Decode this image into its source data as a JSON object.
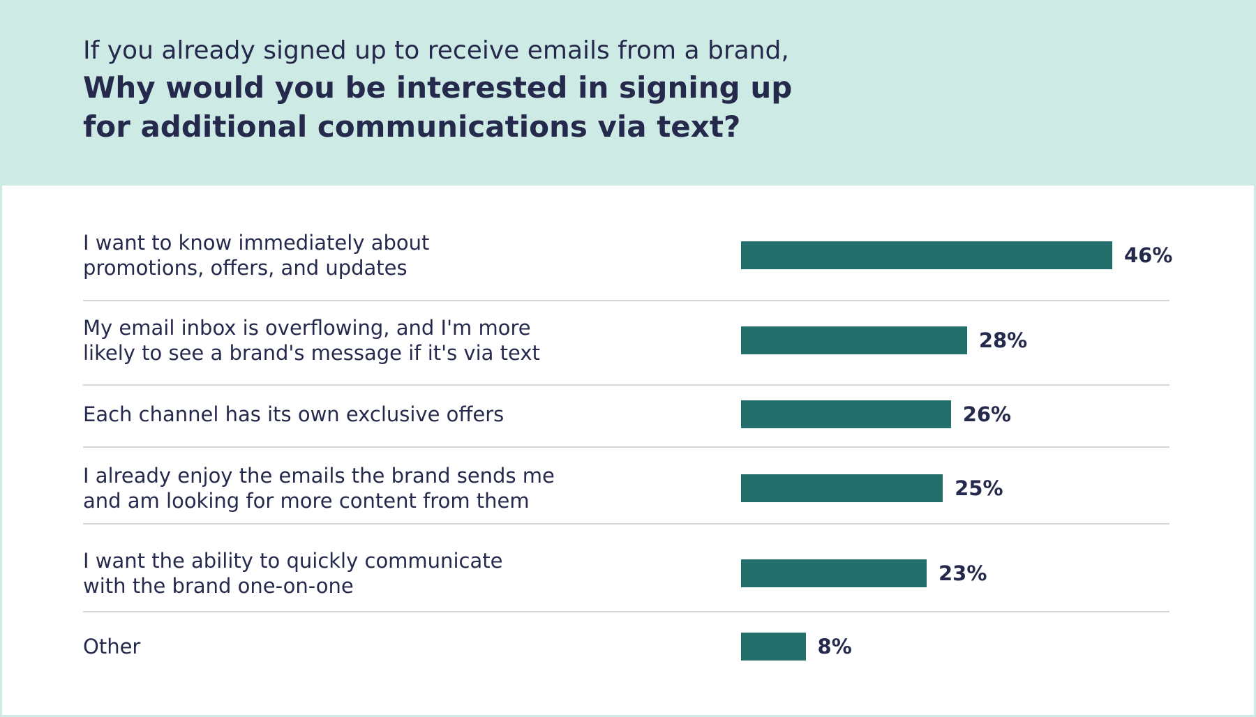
{
  "header": {
    "subtitle": "If you already signed up to receive emails from a brand,",
    "title": "Why would you be interested in signing up for additional communications via text?"
  },
  "colors": {
    "header_background": "#cdeae5",
    "bar": "#236e6b",
    "text": "#252a4c",
    "divider": "#d6d6d6"
  },
  "chart_data": {
    "type": "bar",
    "orientation": "horizontal",
    "categories": [
      "I want to know immediately about\npromotions, offers, and updates",
      "My email inbox is overflowing, and I'm more\nlikely to see a brand's message if it's via text",
      "Each channel has its own exclusive offers",
      "I already enjoy the emails the brand sends me\nand am looking for more content from them",
      "I want the ability to quickly communicate\nwith the brand one-on-one",
      "Other"
    ],
    "values": [
      46,
      28,
      26,
      25,
      23,
      8
    ],
    "value_labels": [
      "46%",
      "28%",
      "26%",
      "25%",
      "23%",
      "8%"
    ],
    "unit": "%",
    "xlim": [
      0,
      46
    ],
    "grid": false,
    "legend": "none"
  }
}
